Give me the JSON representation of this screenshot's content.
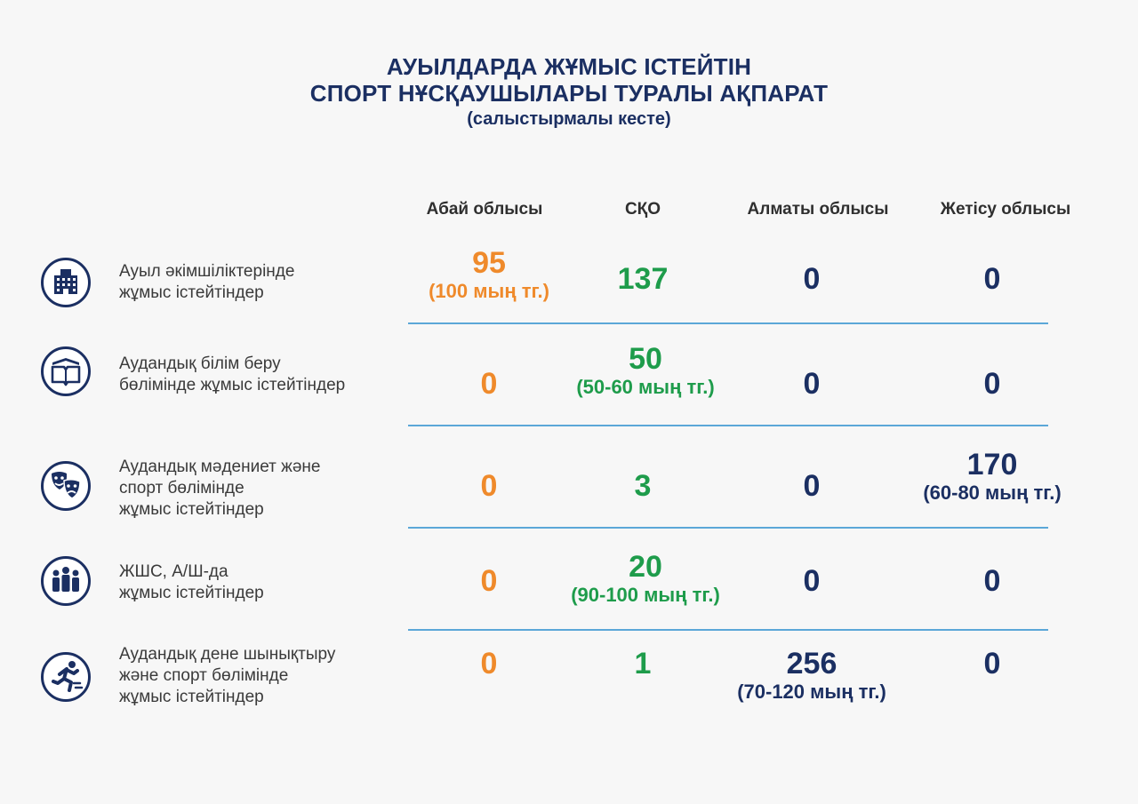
{
  "title": {
    "line1": "АУЫЛДАРДА ЖҰМЫС ІСТЕЙТІН",
    "line2": "СПОРТ НҰСҚАУШЫЛАРЫ ТУРАЛЫ АҚПАРАТ",
    "subtitle": "(салыстырмалы кесте)"
  },
  "chart_data": {
    "type": "table",
    "columns": [
      "Абай облысы",
      "СҚО",
      "Алматы облысы",
      "Жетісу облысы"
    ],
    "column_colors": [
      "#ef8a2b",
      "#1e9c4b",
      "#1b2f62",
      "#1b2f62"
    ],
    "rows": [
      {
        "icon": "building-icon",
        "label": [
          "Ауыл әкімшіліктерінде",
          "жұмыс істейтіндер"
        ],
        "cells": [
          {
            "value": "95",
            "note": "(100 мың тг.)"
          },
          {
            "value": "137",
            "note": ""
          },
          {
            "value": "0",
            "note": ""
          },
          {
            "value": "0",
            "note": ""
          }
        ]
      },
      {
        "icon": "open-book-icon",
        "label": [
          "Аудандық білім беру",
          "бөлімінде жұмыс істейтіндер"
        ],
        "cells": [
          {
            "value": "0",
            "note": ""
          },
          {
            "value": "50",
            "note": "(50-60 мың тг.)"
          },
          {
            "value": "0",
            "note": ""
          },
          {
            "value": "0",
            "note": ""
          }
        ]
      },
      {
        "icon": "theater-masks-icon",
        "label": [
          "Аудандық мәдениет және",
          "спорт бөлімінде",
          "жұмыс істейтіндер"
        ],
        "cells": [
          {
            "value": "0",
            "note": ""
          },
          {
            "value": "3",
            "note": ""
          },
          {
            "value": "0",
            "note": ""
          },
          {
            "value": "170",
            "note": "(60-80 мың тг.)"
          }
        ]
      },
      {
        "icon": "group-people-icon",
        "label": [
          "ЖШС, А/Ш-да",
          "жұмыс істейтіндер"
        ],
        "cells": [
          {
            "value": "0",
            "note": ""
          },
          {
            "value": "20",
            "note": "(90-100 мың тг.)"
          },
          {
            "value": "0",
            "note": ""
          },
          {
            "value": "0",
            "note": ""
          }
        ]
      },
      {
        "icon": "runner-icon",
        "label": [
          "Аудандық дене шынықтыру",
          "және спорт бөлімінде",
          "жұмыс істейтіндер"
        ],
        "cells": [
          {
            "value": "0",
            "note": ""
          },
          {
            "value": "1",
            "note": ""
          },
          {
            "value": "256",
            "note": "(70-120 мың тг.)"
          },
          {
            "value": "0",
            "note": ""
          }
        ]
      }
    ]
  }
}
